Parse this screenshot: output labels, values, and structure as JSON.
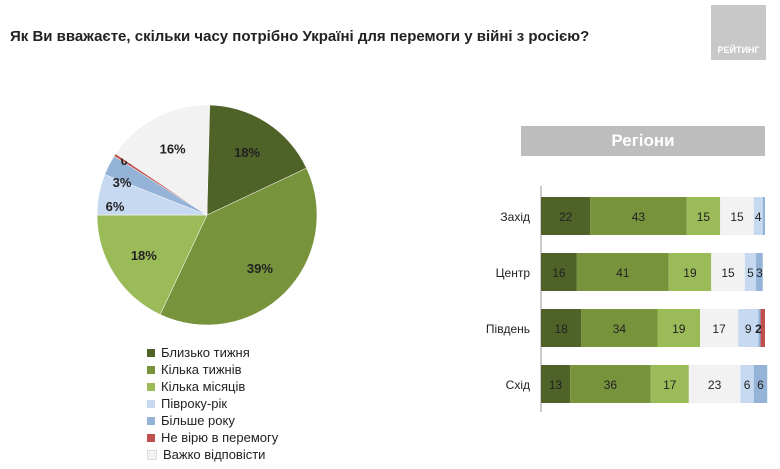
{
  "title": "Як Ви вважаєте, скільки часу потрібно Україні для перемоги у війні з росією?",
  "logo_text": "РЕЙТИНГ",
  "chart_data": [
    {
      "type": "pie",
      "categories": [
        "Близько тижня",
        "Кілька тижнів",
        "Кілька місяців",
        "Півроку-рік",
        "Більше року",
        "Не вірю в перемогу",
        "Важко відповісти"
      ],
      "values": [
        18,
        39,
        18,
        6,
        3,
        0,
        16
      ],
      "labels": [
        "18%",
        "39%",
        "18%",
        "6%",
        "3%",
        "0%",
        "16%"
      ],
      "colors": [
        "#4f6228",
        "#77933c",
        "#9bbb59",
        "#c6d9f1",
        "#95b3d7",
        "#c0504d",
        "#f2f2f2"
      ],
      "legend": "bottom"
    },
    {
      "type": "bar",
      "orientation": "horizontal",
      "stacked": true,
      "title": "Регіони",
      "categories": [
        "Захід",
        "Центр",
        "Південь",
        "Схід"
      ],
      "series": [
        {
          "key": "Близько тижня",
          "color": "#4f6228",
          "values": [
            22,
            16,
            18,
            13
          ]
        },
        {
          "key": "Кілька тижнів",
          "color": "#77933c",
          "values": [
            43,
            41,
            34,
            36
          ]
        },
        {
          "key": "Кілька місяців",
          "color": "#9bbb59",
          "values": [
            15,
            19,
            19,
            17
          ]
        },
        {
          "key": "Важко відповісти",
          "color": "#f2f2f2",
          "values": [
            15,
            15,
            17,
            23
          ]
        },
        {
          "key": "Півроку-рік",
          "color": "#c6d9f1",
          "values": [
            4,
            5,
            9,
            6
          ]
        },
        {
          "key": "Більше року",
          "color": "#95b3d7",
          "values": [
            1,
            3,
            1,
            6
          ]
        },
        {
          "key": "Не вірю в перемогу",
          "color": "#c0504d",
          "values": [
            0,
            0,
            2,
            0
          ]
        }
      ],
      "labels": [
        [
          "22",
          "43",
          "15",
          "15",
          "4",
          "",
          ""
        ],
        [
          "16",
          "41",
          "19",
          "15",
          "5",
          "3",
          ""
        ],
        [
          "18",
          "34",
          "19",
          "17",
          "9",
          "",
          "2"
        ],
        [
          "13",
          "36",
          "17",
          "23",
          "6",
          "6",
          ""
        ]
      ]
    }
  ]
}
